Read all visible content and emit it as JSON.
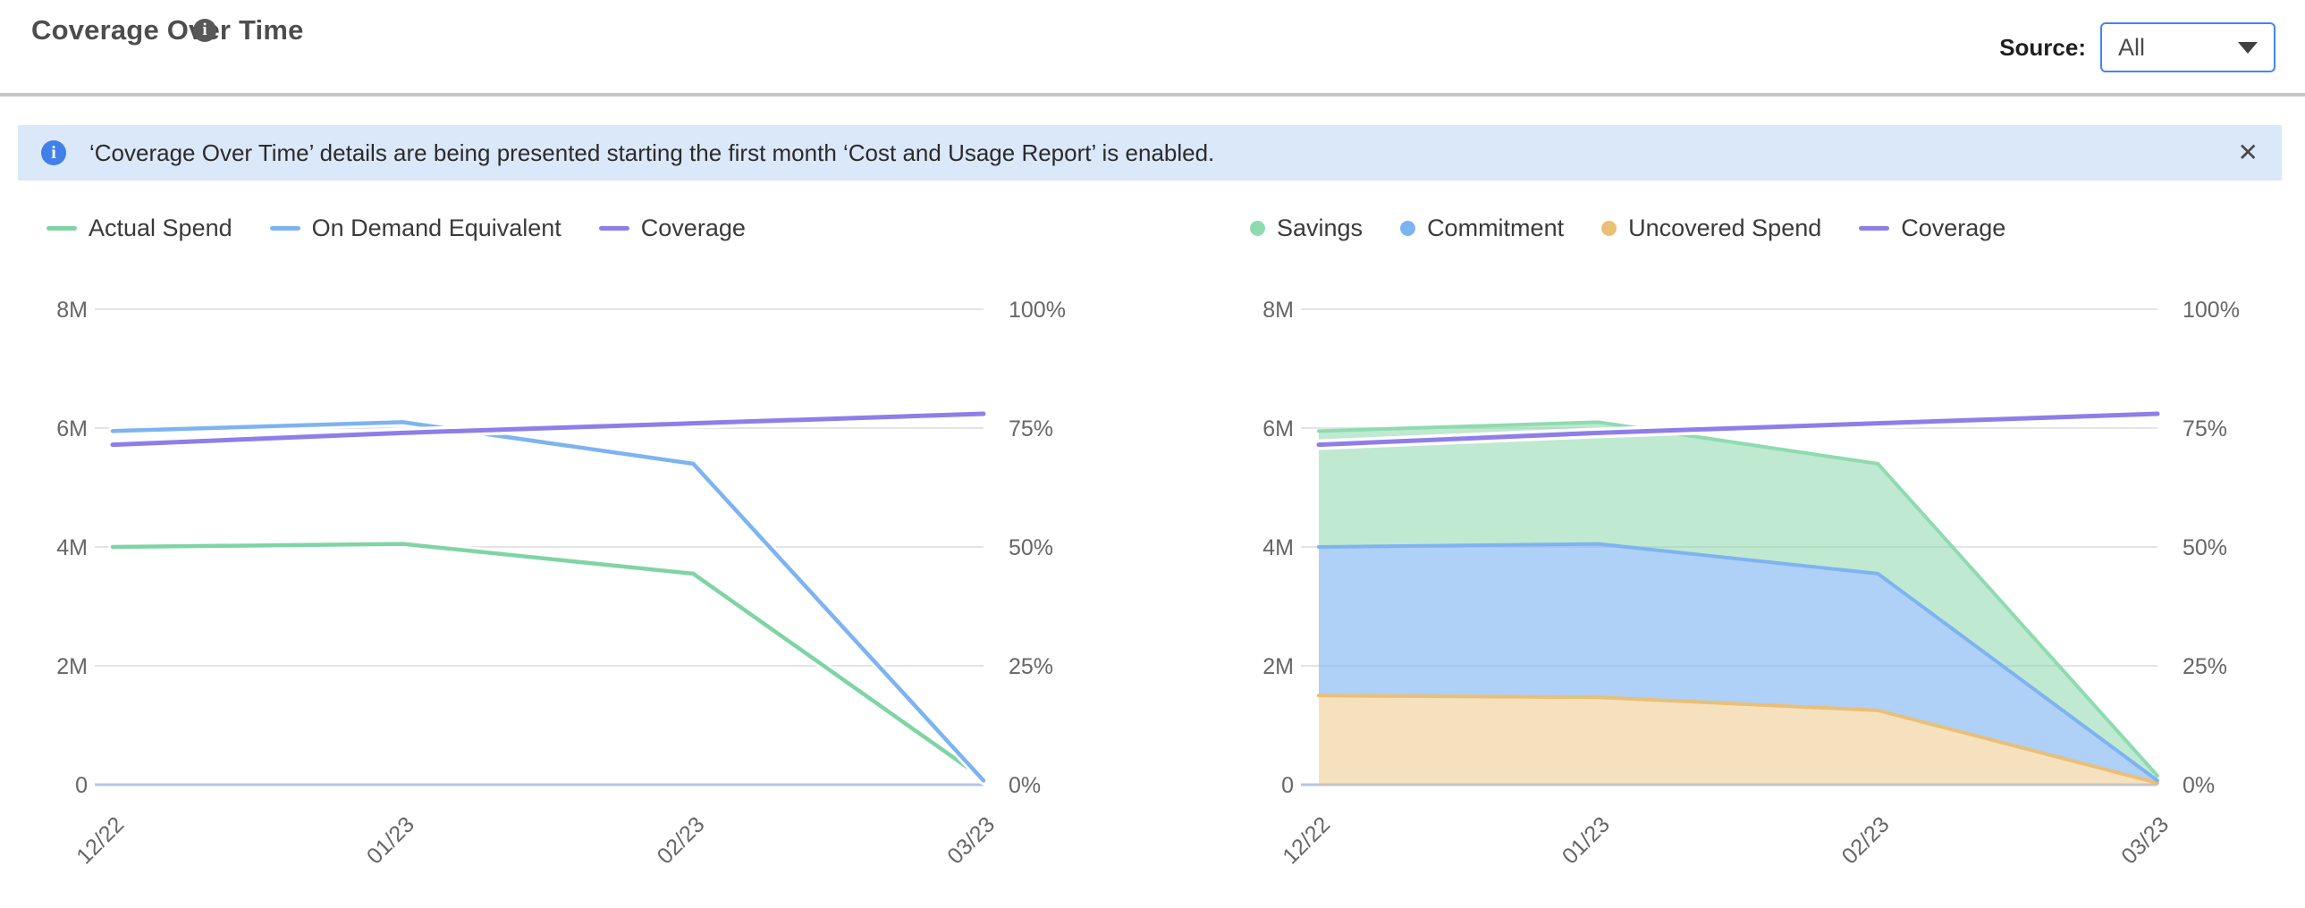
{
  "header": {
    "title": "Coverage Over Time",
    "source_label": "Source:",
    "source_value": "All"
  },
  "banner": {
    "text": "‘Coverage Over Time’ details are being presented starting the first month ‘Cost and Usage Report’ is enabled.",
    "info_glyph": "i",
    "close_glyph": "✕"
  },
  "icons": {
    "title_info": "info-icon",
    "banner_info": "info-icon",
    "banner_close": "close-icon",
    "dropdown_caret": "chevron-down-icon"
  },
  "colors": {
    "accent_blue": "#4285f4",
    "banner_bg": "#dbe8fa",
    "banner_icon_bg": "#4080e8",
    "title_text": "#4d4d4d",
    "legend_text": "#3a3a3a",
    "axis_text": "#666666",
    "grid": "#e4e4e4",
    "baseline": "#b6c3ea",
    "divider": "#c5c5c5",
    "series_green": "#7fd4a4",
    "series_blue": "#7eb3f2",
    "series_purple": "#8f7de9",
    "series_orange": "#eabf76"
  },
  "chart_data": [
    {
      "name": "spend-vs-on-demand-line-chart",
      "type": "line",
      "categories": [
        "12/22",
        "01/23",
        "02/23",
        "03/23"
      ],
      "series": [
        {
          "name": "Actual Spend",
          "axis": "left",
          "unit": "M",
          "values": [
            4.0,
            4.05,
            3.55,
            0.1
          ],
          "color": "#7fd4a4",
          "marker": "line",
          "legend_order": 0
        },
        {
          "name": "On Demand Equivalent",
          "axis": "left",
          "unit": "M",
          "values": [
            5.95,
            6.1,
            5.4,
            0.07
          ],
          "color": "#7eb3f2",
          "marker": "line",
          "legend_order": 1
        },
        {
          "name": "Coverage",
          "axis": "right",
          "unit": "%",
          "values": [
            71.5,
            74,
            76,
            78
          ],
          "color": "#8f7de9",
          "marker": "line",
          "legend_order": 2
        }
      ],
      "left_axis": {
        "ticks": [
          "0",
          "2M",
          "4M",
          "6M",
          "8M"
        ],
        "max": 8,
        "unit": "M"
      },
      "right_axis": {
        "ticks": [
          "0%",
          "25%",
          "50%",
          "75%",
          "100%"
        ],
        "max": 100,
        "unit": "%"
      },
      "grid": true,
      "legend_position": "top-left"
    },
    {
      "name": "coverage-stacked-area-chart",
      "type": "area",
      "stacked": true,
      "categories": [
        "12/22",
        "01/23",
        "02/23",
        "03/23"
      ],
      "series": [
        {
          "name": "Uncovered Spend",
          "stack": true,
          "axis": "left",
          "unit": "M",
          "values": [
            1.5,
            1.47,
            1.25,
            0.03
          ],
          "color": "#eabf76",
          "fill": "rgba(237,195,126,0.50)",
          "marker": "circle",
          "legend_order": 2
        },
        {
          "name": "Commitment",
          "stack": true,
          "axis": "left",
          "unit": "M",
          "values": [
            2.5,
            2.58,
            2.3,
            0.04
          ],
          "color": "#7eb3f2",
          "fill": "rgba(126,179,242,0.62)",
          "marker": "circle",
          "legend_order": 1
        },
        {
          "name": "Savings",
          "stack": true,
          "axis": "left",
          "unit": "M",
          "values": [
            1.95,
            2.05,
            1.85,
            0.08
          ],
          "color": "#8edbb0",
          "fill": "rgba(127,212,164,0.50)",
          "marker": "circle",
          "legend_order": 0
        },
        {
          "name": "Coverage",
          "axis": "right",
          "unit": "%",
          "values": [
            71.5,
            74,
            76,
            78
          ],
          "color": "#8f7de9",
          "marker": "line",
          "legend_order": 3
        }
      ],
      "left_axis": {
        "ticks": [
          "0",
          "2M",
          "4M",
          "6M",
          "8M"
        ],
        "max": 8,
        "unit": "M"
      },
      "right_axis": {
        "ticks": [
          "0%",
          "25%",
          "50%",
          "75%",
          "100%"
        ],
        "max": 100,
        "unit": "%"
      },
      "grid": true,
      "legend_position": "top-left"
    }
  ]
}
